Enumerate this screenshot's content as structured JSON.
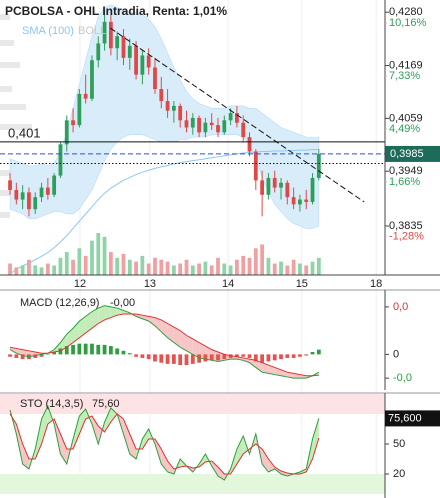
{
  "chart_data": [
    {
      "type": "candlestick",
      "title": "PCBOLSA - OHL Intradia, Renta: 1,01%",
      "x": [
        0,
        1,
        2,
        3,
        4,
        5,
        6,
        7,
        8,
        9,
        10,
        11,
        12,
        13,
        14,
        15,
        16,
        17,
        18,
        19,
        20,
        21,
        22,
        23,
        24,
        25,
        26,
        27,
        28,
        29,
        30,
        31,
        32,
        33,
        34,
        35,
        36,
        37,
        38,
        39,
        40,
        41,
        42,
        43,
        44,
        45,
        46,
        47,
        48,
        49
      ],
      "open": [
        0.393,
        0.391,
        0.389,
        0.3905,
        0.387,
        0.3895,
        0.3915,
        0.39,
        0.394,
        0.4005,
        0.4055,
        0.4045,
        0.411,
        0.41,
        0.418,
        0.4215,
        0.426,
        0.4205,
        0.423,
        0.4185,
        0.421,
        0.415,
        0.419,
        0.4165,
        0.412,
        0.4095,
        0.4075,
        0.4085,
        0.4055,
        0.404,
        0.406,
        0.403,
        0.405,
        0.4045,
        0.403,
        0.4055,
        0.407,
        0.405,
        0.402,
        0.399,
        0.393,
        0.39,
        0.3935,
        0.3915,
        0.3925,
        0.3895,
        0.388,
        0.389,
        0.3885,
        0.3935
      ],
      "high": [
        0.3945,
        0.3925,
        0.392,
        0.3915,
        0.3905,
        0.3925,
        0.3935,
        0.3945,
        0.401,
        0.4065,
        0.408,
        0.412,
        0.415,
        0.419,
        0.423,
        0.4285,
        0.4275,
        0.424,
        0.4245,
        0.4225,
        0.422,
        0.42,
        0.4205,
        0.4185,
        0.4145,
        0.412,
        0.4095,
        0.409,
        0.4075,
        0.407,
        0.4065,
        0.406,
        0.407,
        0.406,
        0.4065,
        0.408,
        0.4085,
        0.4065,
        0.403,
        0.3995,
        0.395,
        0.3945,
        0.395,
        0.3935,
        0.393,
        0.3915,
        0.39,
        0.391,
        0.3945,
        0.3995
      ],
      "low": [
        0.39,
        0.388,
        0.387,
        0.3855,
        0.386,
        0.3885,
        0.389,
        0.3895,
        0.3935,
        0.399,
        0.403,
        0.404,
        0.409,
        0.4095,
        0.4165,
        0.42,
        0.419,
        0.418,
        0.417,
        0.416,
        0.414,
        0.413,
        0.415,
        0.411,
        0.408,
        0.406,
        0.405,
        0.404,
        0.403,
        0.4025,
        0.402,
        0.402,
        0.4035,
        0.402,
        0.4025,
        0.4045,
        0.404,
        0.401,
        0.398,
        0.391,
        0.3855,
        0.389,
        0.3905,
        0.389,
        0.388,
        0.387,
        0.3865,
        0.387,
        0.388,
        0.393
      ],
      "close": [
        0.391,
        0.389,
        0.3905,
        0.387,
        0.3895,
        0.3915,
        0.39,
        0.394,
        0.4005,
        0.4055,
        0.4045,
        0.411,
        0.41,
        0.418,
        0.4215,
        0.426,
        0.4205,
        0.423,
        0.4185,
        0.421,
        0.415,
        0.419,
        0.4165,
        0.412,
        0.4095,
        0.4075,
        0.4085,
        0.4055,
        0.404,
        0.406,
        0.403,
        0.405,
        0.4045,
        0.403,
        0.4055,
        0.407,
        0.405,
        0.402,
        0.399,
        0.393,
        0.39,
        0.3935,
        0.3915,
        0.3925,
        0.3895,
        0.388,
        0.389,
        0.3885,
        0.3935,
        0.3985
      ],
      "volume": [
        6,
        4,
        5,
        8,
        5,
        4,
        6,
        5,
        9,
        12,
        8,
        14,
        10,
        18,
        22,
        20,
        12,
        9,
        11,
        8,
        7,
        10,
        6,
        9,
        8,
        7,
        5,
        6,
        8,
        5,
        6,
        7,
        5,
        9,
        6,
        5,
        8,
        10,
        9,
        14,
        16,
        9,
        6,
        7,
        5,
        8,
        6,
        5,
        7,
        9
      ],
      "up_color": "#2e9e5b",
      "down_color": "#e04848",
      "volume_up_color": "#8fd3a8",
      "volume_down_color": "#f0a0a0",
      "series": [
        {
          "name": "SMA (100)",
          "color": "#8cc8f0",
          "values": [
            0.3735,
            0.3745,
            0.3752,
            0.3758,
            0.3765,
            0.3772,
            0.378,
            0.379,
            0.3802,
            0.3815,
            0.383,
            0.3845,
            0.386,
            0.3875,
            0.389,
            0.3903,
            0.3914,
            0.3922,
            0.393,
            0.3936,
            0.3942,
            0.3947,
            0.3951,
            0.3955,
            0.3958,
            0.3961,
            0.3964,
            0.3967,
            0.3969,
            0.3971,
            0.3973,
            0.3975,
            0.3977,
            0.3979,
            0.3981,
            0.3983,
            0.3985,
            0.3987,
            0.3988,
            0.3989,
            0.399,
            0.399,
            0.3991,
            0.3991,
            0.3992,
            0.3992,
            0.3993,
            0.3993,
            0.3994,
            0.3994
          ]
        },
        {
          "name": "BOLL",
          "color": "#d8ecfa",
          "upper": [
            0.3975,
            0.397,
            0.3965,
            0.396,
            0.396,
            0.3965,
            0.396,
            0.3965,
            0.399,
            0.403,
            0.408,
            0.413,
            0.418,
            0.423,
            0.427,
            0.429,
            0.4295,
            0.429,
            0.4285,
            0.428,
            0.428,
            0.4275,
            0.4265,
            0.425,
            0.4225,
            0.4195,
            0.4165,
            0.414,
            0.4115,
            0.41,
            0.409,
            0.4085,
            0.408,
            0.408,
            0.408,
            0.4085,
            0.4085,
            0.4085,
            0.408,
            0.408,
            0.407,
            0.406,
            0.405,
            0.404,
            0.4035,
            0.403,
            0.4025,
            0.402,
            0.402,
            0.402
          ],
          "lower": [
            0.387,
            0.3865,
            0.386,
            0.385,
            0.385,
            0.3855,
            0.386,
            0.3865,
            0.3865,
            0.386,
            0.386,
            0.387,
            0.389,
            0.391,
            0.394,
            0.397,
            0.3995,
            0.401,
            0.402,
            0.4025,
            0.4025,
            0.4025,
            0.402,
            0.4015,
            0.401,
            0.401,
            0.401,
            0.4015,
            0.4015,
            0.402,
            0.402,
            0.402,
            0.4025,
            0.4025,
            0.4025,
            0.4025,
            0.4025,
            0.402,
            0.4005,
            0.3975,
            0.3935,
            0.3905,
            0.388,
            0.3865,
            0.385,
            0.384,
            0.3835,
            0.383,
            0.383,
            0.3835
          ]
        }
      ],
      "xlim": [
        -0.8,
        59.5
      ],
      "xticks": [
        {
          "value": 11.1,
          "label": "12"
        },
        {
          "value": 22.2,
          "label": "13"
        },
        {
          "value": 34.6,
          "label": "14"
        },
        {
          "value": 46.3,
          "label": "15"
        },
        {
          "value": 58.1,
          "label": "18"
        }
      ],
      "grid": true,
      "ylim": [
        0.3733,
        0.4295
      ],
      "yticks": [
        {
          "value": 0.428,
          "label": "0,4280"
        },
        {
          "value": 0.4169,
          "label": "0,4169"
        },
        {
          "value": 0.4059,
          "label": "0,4059"
        },
        {
          "value": 0.3949,
          "label": "0,3949"
        },
        {
          "value": 0.3835,
          "label": "0,3835"
        }
      ],
      "y2lim": [
        -3.92,
        10.545
      ],
      "y2ticks": [
        {
          "value": 10.16,
          "label": "10,16%"
        },
        {
          "value": 7.33,
          "label": "7,33%"
        },
        {
          "value": 4.49,
          "label": "4,49%"
        },
        {
          "value": 1.66,
          "label": "1,66%"
        },
        {
          "value": -1.28,
          "label": "-1,28%"
        }
      ],
      "hlines": [
        {
          "value": 0.401,
          "label": "0,401",
          "style": "solid",
          "color": "#111"
        },
        {
          "value": 0.3985,
          "label": "0,3985",
          "style": "dashed",
          "color": "#2b4fd8",
          "box_color": "#1d6b58"
        },
        {
          "value": 0.3965,
          "style": "dotted",
          "color": "#111"
        }
      ],
      "trendline": {
        "x": [
          15.9,
          56.2
        ],
        "y": [
          0.4247,
          0.3885
        ],
        "color": "#111"
      }
    },
    {
      "type": "macd",
      "title": "MACD (12,26,9)",
      "current": {
        "value": -0.0015,
        "label": "-0,00"
      },
      "ylim": [
        -0.003,
        0.005
      ],
      "yticks": [
        {
          "value": 0.004,
          "label": "0,0"
        },
        0,
        {
          "value": -0.002,
          "label": "-0,0"
        }
      ],
      "ytick_colors": [
        "#e03030",
        "#222",
        "#2e9e3e"
      ],
      "series": [
        {
          "color": "#2e9e3e",
          "values": [
            0.0004,
            0.0001,
            -0.0001,
            -0.0002,
            -0.0001,
            0.0,
            0.0001,
            0.0004,
            0.001,
            0.0017,
            0.0022,
            0.0028,
            0.0032,
            0.0036,
            0.0039,
            0.0041,
            0.004,
            0.0039,
            0.0037,
            0.0035,
            0.0032,
            0.003,
            0.0028,
            0.0024,
            0.0019,
            0.0014,
            0.001,
            0.0006,
            0.0003,
            0.0,
            -0.0003,
            -0.0004,
            -0.0005,
            -0.0006,
            -0.0005,
            -0.0004,
            -0.0004,
            -0.0005,
            -0.0007,
            -0.0011,
            -0.0015,
            -0.0016,
            -0.0017,
            -0.0018,
            -0.0019,
            -0.002,
            -0.002,
            -0.002,
            -0.0018,
            -0.0015
          ]
        },
        {
          "color": "#e03030",
          "values": [
            0.0006,
            0.0005,
            0.0004,
            0.0003,
            0.0002,
            0.0001,
            0.0001,
            0.0002,
            0.0003,
            0.0006,
            0.001,
            0.0014,
            0.0018,
            0.0022,
            0.0026,
            0.0029,
            0.0031,
            0.0033,
            0.0034,
            0.0034,
            0.0034,
            0.0033,
            0.0032,
            0.0031,
            0.0029,
            0.0026,
            0.0023,
            0.002,
            0.0016,
            0.0013,
            0.001,
            0.0007,
            0.0004,
            0.0002,
            0.0,
            -0.0001,
            -0.0002,
            -0.0003,
            -0.0004,
            -0.0005,
            -0.0007,
            -0.0009,
            -0.0011,
            -0.0013,
            -0.0015,
            -0.0016,
            -0.0017,
            -0.0018,
            -0.0018,
            -0.00175
          ]
        }
      ],
      "histogram": [
        -0.0002,
        -0.0003,
        -0.0004,
        -0.0004,
        -0.0003,
        -0.0002,
        0.0,
        0.0002,
        0.0005,
        0.0007,
        0.0008,
        0.0009,
        0.0009,
        0.0009,
        0.0008,
        0.0008,
        0.0007,
        0.0005,
        0.0003,
        0.0001,
        -0.0002,
        -0.0003,
        -0.0004,
        -0.0006,
        -0.0007,
        -0.0008,
        -0.0008,
        -0.0009,
        -0.0009,
        -0.0008,
        -0.0007,
        -0.0006,
        -0.0005,
        -0.0005,
        -0.0004,
        -0.0003,
        -0.0002,
        -0.0002,
        -0.0003,
        -0.0006,
        -0.0007,
        -0.0006,
        -0.0005,
        -0.0004,
        -0.0003,
        -0.0003,
        -0.0002,
        -0.0001,
        0.0002,
        0.0004
      ],
      "up_color": "#2e9e3e",
      "down_color": "#e85050",
      "fill_up": "#c4ecb8",
      "fill_down": "#f6c6c6"
    },
    {
      "type": "stochastic",
      "title": "STO (14,3,5)",
      "current": {
        "value": 75.6,
        "label": "75,60"
      },
      "current_box_label": "75,600",
      "ylim": [
        0,
        100
      ],
      "yticks": [
        50,
        20
      ],
      "zones": [
        {
          "from": 80,
          "to": 100,
          "color": "#fde3e3"
        },
        {
          "from": 0,
          "to": 20,
          "color": "#e2f7dc"
        }
      ],
      "series": [
        {
          "color": "#2e9e3e",
          "values": [
            84,
            60,
            30,
            25,
            45,
            75,
            88,
            70,
            40,
            30,
            55,
            78,
            85,
            70,
            50,
            72,
            86,
            80,
            60,
            40,
            35,
            55,
            65,
            50,
            30,
            22,
            20,
            35,
            28,
            22,
            30,
            40,
            28,
            18,
            14,
            25,
            45,
            58,
            40,
            60,
            30,
            22,
            25,
            20,
            18,
            20,
            22,
            25,
            55,
            75.6
          ]
        },
        {
          "color": "#e03030",
          "values": [
            80,
            70,
            50,
            35,
            35,
            50,
            70,
            75,
            60,
            45,
            45,
            60,
            75,
            78,
            68,
            62,
            72,
            80,
            75,
            60,
            45,
            45,
            55,
            55,
            45,
            33,
            25,
            27,
            28,
            26,
            27,
            32,
            33,
            27,
            20,
            20,
            30,
            40,
            45,
            50,
            45,
            35,
            27,
            23,
            21,
            20,
            20,
            22,
            35,
            56
          ]
        }
      ],
      "fill_up": "#c4ecb8",
      "fill_down": "#f6c6c6",
      "box_color": "#111"
    }
  ]
}
